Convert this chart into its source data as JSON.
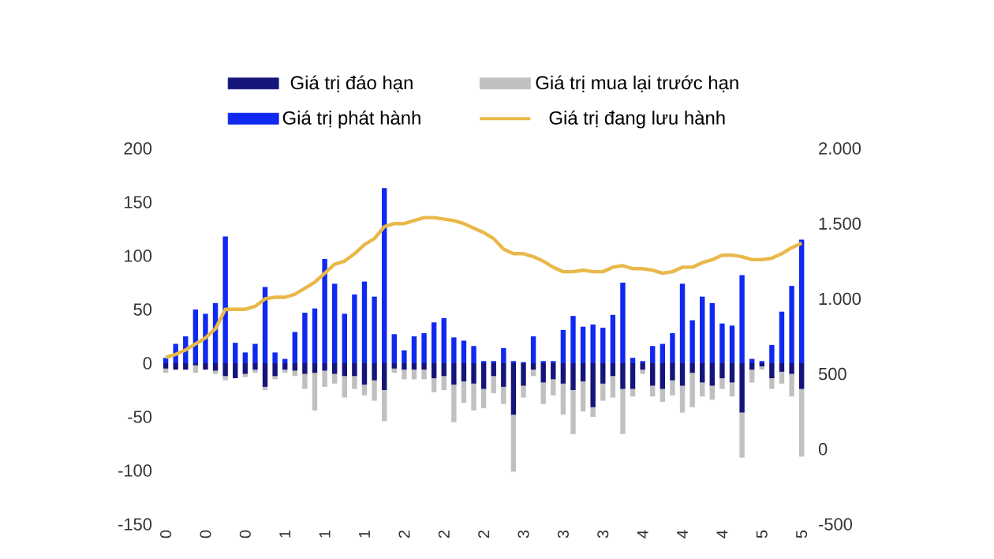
{
  "chart_data": {
    "type": "bar",
    "stacked": true,
    "legend": "top",
    "tick_labels": "y",
    "categories": [
      "0",
      null,
      null,
      null,
      "0",
      null,
      null,
      null,
      "0",
      null,
      null,
      null,
      "1",
      null,
      null,
      null,
      "1",
      null,
      null,
      null,
      "1",
      null,
      null,
      null,
      "2",
      null,
      null,
      null,
      "2",
      null,
      null,
      null,
      "2",
      null,
      null,
      null,
      "3",
      null,
      null,
      null,
      "3",
      null,
      null,
      null,
      "3",
      null,
      null,
      null,
      "4",
      null,
      null,
      null,
      "4",
      null,
      null,
      null,
      "4",
      null,
      null,
      null,
      "5",
      null,
      null,
      null,
      "5"
    ],
    "ylim": [
      -150,
      200
    ],
    "yticks": [
      -150,
      -100,
      -50,
      0,
      50,
      100,
      150,
      200
    ],
    "y2lim": [
      -500,
      2000
    ],
    "y2ticks": [
      {
        "value": -500,
        "label": "-500"
      },
      0,
      500,
      {
        "value": 1000,
        "label": "1.000"
      },
      {
        "value": 1500,
        "label": "1.500"
      },
      {
        "value": 2000,
        "label": "2.000"
      }
    ],
    "series": [
      {
        "name": "Giá trị đáo hạn",
        "color": "#14147a",
        "values": [
          -5,
          -6,
          -6,
          -2,
          -6,
          -7,
          -12,
          -14,
          -10,
          -6,
          -22,
          -12,
          -6,
          -7,
          -10,
          -9,
          -7,
          -10,
          -12,
          -12,
          -20,
          -16,
          -25,
          -5,
          -6,
          -6,
          -6,
          -14,
          -12,
          -20,
          -17,
          -19,
          -24,
          -12,
          -22,
          -48,
          -21,
          -6,
          -18,
          -15,
          -19,
          -25,
          -17,
          -41,
          -19,
          -12,
          -24,
          -24,
          -6,
          -21,
          -24,
          -16,
          -21,
          -9,
          -18,
          -21,
          -14,
          -18,
          -46,
          -6,
          -3,
          -14,
          -8,
          -10,
          -24
        ]
      },
      {
        "name": "Giá trị mua lại trước hạn",
        "color": "#c0c0c0",
        "values": [
          -4,
          null,
          null,
          -7,
          null,
          -3,
          -4,
          null,
          -3,
          -3,
          -3,
          -3,
          -3,
          -5,
          -14,
          -35,
          -15,
          -9,
          -20,
          -12,
          -10,
          -19,
          -29,
          -4,
          -9,
          -9,
          -9,
          -13,
          -13,
          -35,
          -20,
          -25,
          -18,
          -16,
          -16,
          -53,
          -11,
          -6,
          -20,
          -15,
          -29,
          -41,
          -28,
          -9,
          -16,
          -20,
          -42,
          -7,
          -4,
          -10,
          -12,
          -14,
          -25,
          -32,
          -13,
          -13,
          -10,
          -13,
          -42,
          -12,
          -3,
          -10,
          -11,
          -21,
          -63
        ]
      },
      {
        "name": "Giá trị phát hành",
        "color": "#1029f0",
        "values": [
          5,
          18,
          25,
          50,
          46,
          56,
          118,
          19,
          10,
          18,
          71,
          10,
          4,
          29,
          47,
          51,
          97,
          74,
          46,
          64,
          76,
          62,
          163,
          27,
          12,
          25,
          28,
          38,
          42,
          24,
          21,
          16,
          2,
          2,
          14,
          2,
          1,
          25,
          2,
          2,
          31,
          44,
          34,
          36,
          33,
          45,
          75,
          5,
          2,
          16,
          18,
          28,
          74,
          40,
          62,
          56,
          37,
          35,
          82,
          4,
          2,
          17,
          48,
          72,
          115
        ]
      },
      {
        "name": "Giá trị đang lưu hành",
        "color": "#e8b84a",
        "type": "line",
        "axis": "y2",
        "marker": "none",
        "values": [
          610,
          630,
          660,
          700,
          740,
          800,
          930,
          930,
          930,
          950,
          1000,
          1010,
          1010,
          1030,
          1070,
          1110,
          1170,
          1230,
          1250,
          1300,
          1360,
          1400,
          1480,
          1500,
          1500,
          1520,
          1540,
          1540,
          1530,
          1520,
          1500,
          1470,
          1440,
          1400,
          1330,
          1300,
          1300,
          1280,
          1250,
          1210,
          1180,
          1180,
          1190,
          1180,
          1180,
          1210,
          1220,
          1200,
          1200,
          1190,
          1170,
          1180,
          1210,
          1210,
          1240,
          1260,
          1290,
          1290,
          1280,
          1260,
          1260,
          1270,
          1300,
          1340,
          1370
        ]
      }
    ]
  }
}
